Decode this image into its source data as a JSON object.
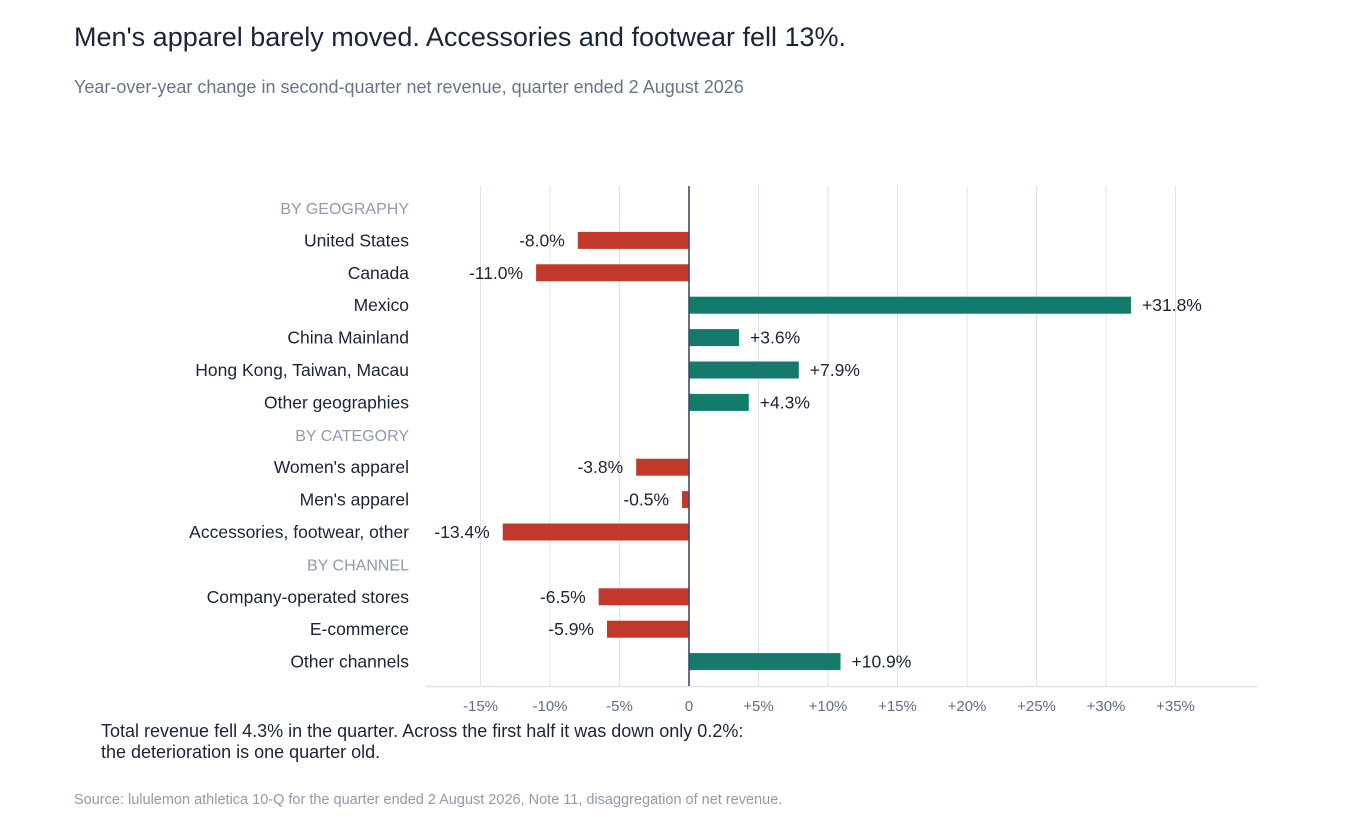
{
  "header": {
    "title": "Men's apparel barely moved. Accessories and footwear fell 13%.",
    "subtitle": "Year-over-year change in second-quarter net revenue, quarter ended 2 August 2026"
  },
  "chart_data": {
    "type": "bar",
    "orientation": "horizontal",
    "title": "Men's apparel barely moved. Accessories and footwear fell 13%.",
    "subtitle": "Year-over-year change in second-quarter net revenue, quarter ended 2 August 2026",
    "xlabel": "",
    "ylabel": "",
    "xlim": [
      -19,
      41
    ],
    "grid": true,
    "legend": "none",
    "x_ticks": [
      {
        "value": -15,
        "label": "-15%"
      },
      {
        "value": -10,
        "label": "-10%"
      },
      {
        "value": -5,
        "label": "-5%"
      },
      {
        "value": 0,
        "label": "0"
      },
      {
        "value": 5,
        "label": "+5%"
      },
      {
        "value": 10,
        "label": "+10%"
      },
      {
        "value": 15,
        "label": "+15%"
      },
      {
        "value": 20,
        "label": "+20%"
      },
      {
        "value": 25,
        "label": "+25%"
      },
      {
        "value": 30,
        "label": "+30%"
      },
      {
        "value": 35,
        "label": "+35%"
      }
    ],
    "colors": {
      "negative": "#c0392b",
      "positive": "#137a6c",
      "grid": "#dde1ea",
      "zero_line": "#3d4a66",
      "header_text": "#8f9aac"
    },
    "groups": [
      {
        "name": "BY GEOGRAPHY",
        "items": [
          {
            "label": "United States",
            "value": -8.0,
            "value_label": "-8.0%"
          },
          {
            "label": "Canada",
            "value": -11.0,
            "value_label": "-11.0%"
          },
          {
            "label": "Mexico",
            "value": 31.8,
            "value_label": "+31.8%"
          },
          {
            "label": "China Mainland",
            "value": 3.6,
            "value_label": "+3.6%"
          },
          {
            "label": "Hong Kong, Taiwan, Macau",
            "value": 7.9,
            "value_label": "+7.9%"
          },
          {
            "label": "Other geographies",
            "value": 4.3,
            "value_label": "+4.3%"
          }
        ]
      },
      {
        "name": "BY CATEGORY",
        "items": [
          {
            "label": "Women's apparel",
            "value": -3.8,
            "value_label": "-3.8%"
          },
          {
            "label": "Men's apparel",
            "value": -0.5,
            "value_label": "-0.5%"
          },
          {
            "label": "Accessories, footwear, other",
            "value": -13.4,
            "value_label": "-13.4%"
          }
        ]
      },
      {
        "name": "BY CHANNEL",
        "items": [
          {
            "label": "Company-operated stores",
            "value": -6.5,
            "value_label": "-6.5%"
          },
          {
            "label": "E-commerce",
            "value": -5.9,
            "value_label": "-5.9%"
          },
          {
            "label": "Other channels",
            "value": 10.9,
            "value_label": "+10.9%"
          }
        ]
      }
    ]
  },
  "note": {
    "line1": "Total revenue fell 4.3% in the quarter. Across the first half it was down only 0.2%:",
    "line2": "the deterioration is one quarter old."
  },
  "source": "Source: lululemon athletica 10-Q for the quarter ended 2 August 2026, Note 11, disaggregation of net revenue."
}
